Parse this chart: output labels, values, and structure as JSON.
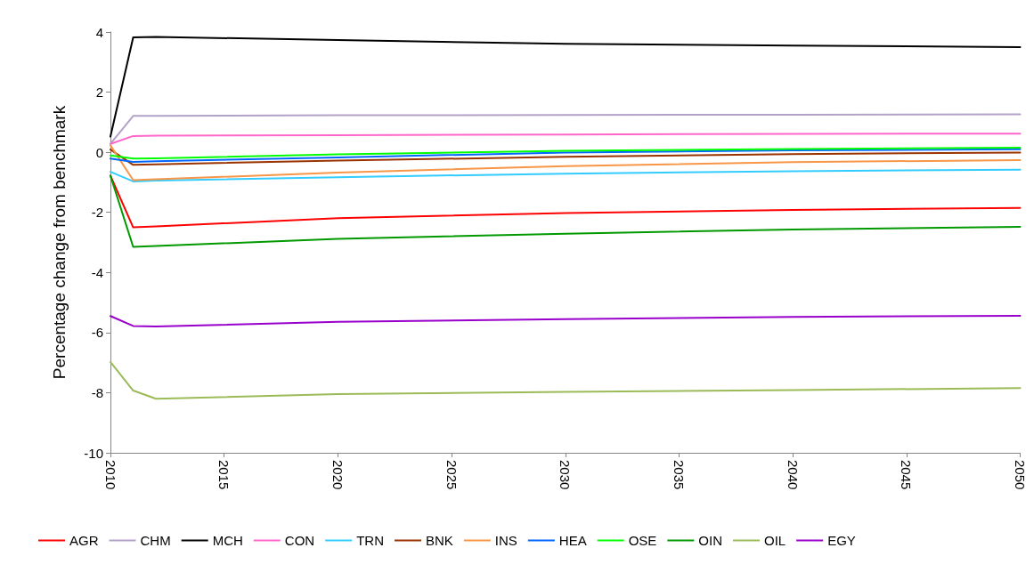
{
  "chart_data": {
    "type": "line",
    "ylabel": "Percentage change from benchmark",
    "x": [
      2010,
      2011,
      2012,
      2020,
      2030,
      2040,
      2050
    ],
    "xlim": [
      2010,
      2050
    ],
    "xticks": [
      2010,
      2015,
      2020,
      2025,
      2030,
      2035,
      2040,
      2045,
      2050
    ],
    "ylim": [
      -10,
      4
    ],
    "yticks": [
      -10,
      -8,
      -6,
      -4,
      -2,
      0,
      2,
      4
    ],
    "grid": false,
    "legend": "bottom",
    "marker": "none",
    "line_style": "solid",
    "series": [
      {
        "name": "AGR",
        "color": "#ff0000",
        "values": [
          -0.78,
          -2.5,
          -2.47,
          -2.19,
          -2.02,
          -1.92,
          -1.85
        ]
      },
      {
        "name": "CHM",
        "color": "#b3a2c7",
        "values": [
          0.28,
          1.21,
          1.21,
          1.23,
          1.24,
          1.25,
          1.26
        ]
      },
      {
        "name": "MCH",
        "color": "#000000",
        "values": [
          0.52,
          3.82,
          3.84,
          3.73,
          3.61,
          3.55,
          3.5
        ]
      },
      {
        "name": "CON",
        "color": "#ff66cc",
        "values": [
          0.28,
          0.54,
          0.55,
          0.57,
          0.59,
          0.61,
          0.62
        ]
      },
      {
        "name": "TRN",
        "color": "#33ccff",
        "values": [
          -0.65,
          -0.97,
          -0.94,
          -0.83,
          -0.71,
          -0.63,
          -0.58
        ]
      },
      {
        "name": "BNK",
        "color": "#993300",
        "values": [
          0.09,
          -0.42,
          -0.4,
          -0.28,
          -0.15,
          -0.06,
          -0.01
        ]
      },
      {
        "name": "INS",
        "color": "#f79646",
        "values": [
          0.23,
          -0.93,
          -0.9,
          -0.68,
          -0.46,
          -0.33,
          -0.26
        ]
      },
      {
        "name": "HEA",
        "color": "#0066ff",
        "values": [
          -0.21,
          -0.32,
          -0.3,
          -0.17,
          -0.01,
          0.06,
          0.1
        ]
      },
      {
        "name": "OSE",
        "color": "#00ff00",
        "values": [
          -0.11,
          -0.21,
          -0.2,
          -0.07,
          0.05,
          0.11,
          0.15
        ]
      },
      {
        "name": "OIN",
        "color": "#009900",
        "values": [
          -0.78,
          -3.15,
          -3.12,
          -2.88,
          -2.71,
          -2.57,
          -2.48
        ]
      },
      {
        "name": "OIL",
        "color": "#9bbb59",
        "values": [
          -6.98,
          -7.93,
          -8.2,
          -8.05,
          -7.97,
          -7.91,
          -7.85
        ]
      },
      {
        "name": "EGY",
        "color": "#9900cc",
        "values": [
          -5.45,
          -5.78,
          -5.8,
          -5.64,
          -5.55,
          -5.48,
          -5.44
        ]
      }
    ]
  }
}
